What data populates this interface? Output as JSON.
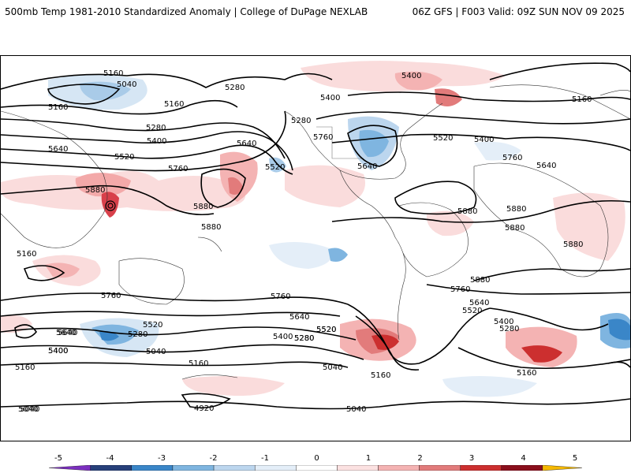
{
  "header": {
    "left_title": "500mb Temp 1981-2010 Standardized Anomaly | College of DuPage NEXLAB",
    "right_title": "06Z GFS | F003 Valid: 09Z SUN NOV 09 2025"
  },
  "map": {
    "contour_labels": [
      "5160",
      "5040",
      "5280",
      "5160",
      "5160",
      "5280",
      "5400",
      "5520",
      "5640",
      "5760",
      "5880",
      "5880",
      "5880",
      "5640",
      "5520",
      "5400",
      "5160",
      "5280",
      "5640",
      "5760",
      "5400",
      "5520",
      "5400",
      "5640",
      "5760",
      "5880",
      "5880",
      "5880",
      "5880",
      "5880",
      "5160",
      "5760",
      "5760",
      "5640",
      "5520",
      "5400",
      "5280",
      "5160",
      "5040",
      "5040",
      "5160",
      "5280",
      "5400",
      "5520",
      "5640",
      "5760",
      "5640",
      "5520",
      "5400",
      "5280",
      "5160",
      "5040",
      "5640",
      "5400",
      "5520",
      "5280",
      "5160",
      "5040",
      "4920",
      "5040"
    ]
  },
  "colorbar": {
    "tick_labels": [
      "-5",
      "-4",
      "-3",
      "-2",
      "-1",
      "0",
      "1",
      "2",
      "3",
      "4",
      "5"
    ],
    "colors": [
      "#7b2fbf",
      "#27407a",
      "#3a86c8",
      "#7fb5e0",
      "#bcd6ee",
      "#e4eef8",
      "#ffffff",
      "#fbe1e1",
      "#f4b3b3",
      "#e27b7b",
      "#cc2f2f",
      "#8a0f1c",
      "#f5b800"
    ]
  }
}
